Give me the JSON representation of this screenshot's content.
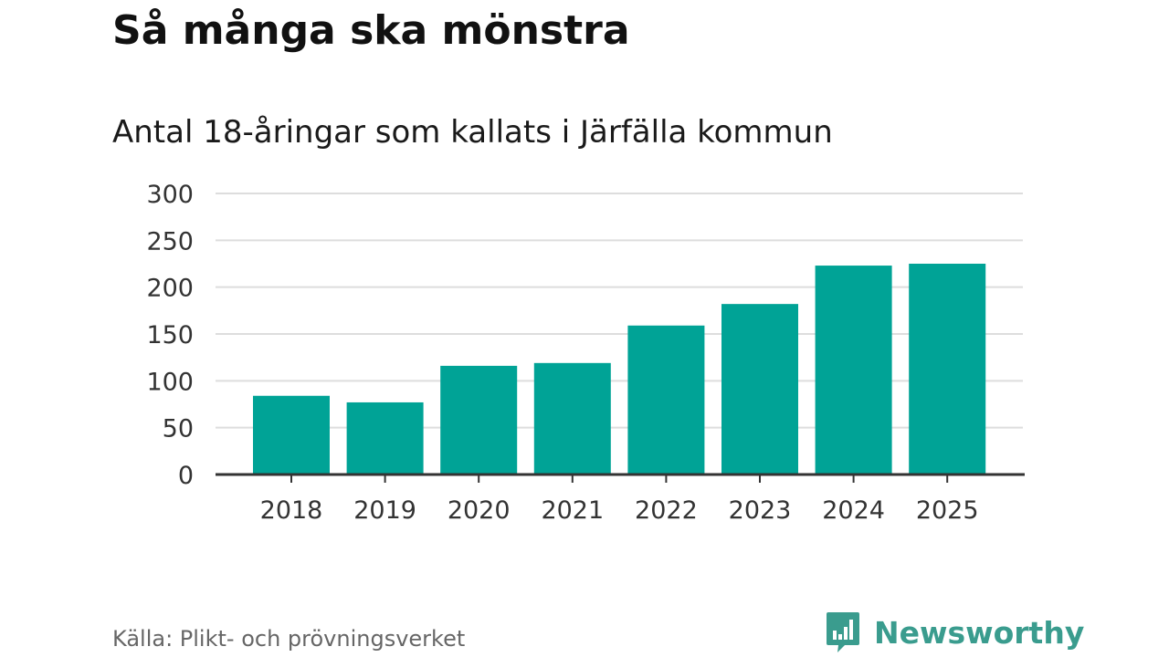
{
  "title": "Så många ska mönstra",
  "subtitle": "Antal 18-åringar som kallats i Järfälla kommun",
  "source": "Källa: Plikt- och prövningsverket",
  "brand": {
    "name": "Newsworthy",
    "icon": "bar-chart-speech-bubble-icon",
    "color": "#3a9c8e"
  },
  "chart_data": {
    "type": "bar",
    "categories": [
      "2018",
      "2019",
      "2020",
      "2021",
      "2022",
      "2023",
      "2024",
      "2025"
    ],
    "values": [
      84,
      77,
      116,
      119,
      159,
      182,
      223,
      225
    ],
    "xlabel": "",
    "ylabel": "",
    "ylim": [
      0,
      300
    ],
    "yticks": [
      "0",
      "50",
      "100",
      "150",
      "200",
      "250",
      "300"
    ],
    "grid": true,
    "bar_color": "#00a396",
    "grid_color": "#dddddd",
    "axis_color": "#333333"
  }
}
